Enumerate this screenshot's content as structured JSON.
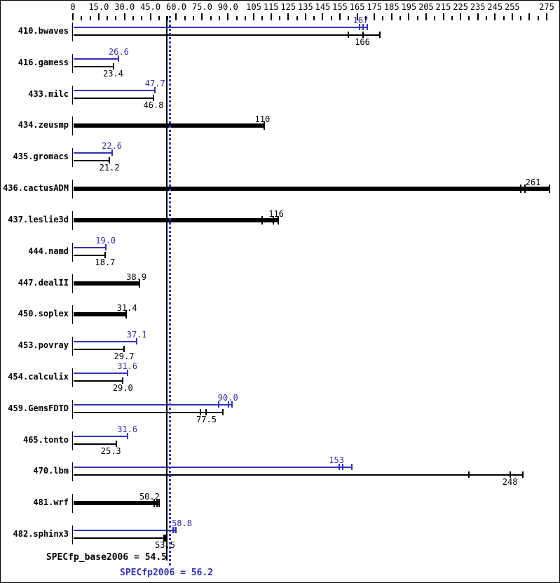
{
  "chart_data": {
    "type": "bar",
    "orientation": "horizontal",
    "title": "",
    "xlabel": "",
    "ylabel": "",
    "xlim": [
      0,
      275
    ],
    "grid": false,
    "legend_position": "none",
    "axis": {
      "minor_step": 5,
      "unlabeled_major_ticks": [
        265
      ],
      "labeled_ticks": [
        {
          "v": 0,
          "t": "0"
        },
        {
          "v": 15,
          "t": "15.0"
        },
        {
          "v": 30,
          "t": "30.0"
        },
        {
          "v": 45,
          "t": "45.0"
        },
        {
          "v": 60,
          "t": "60.0"
        },
        {
          "v": 75,
          "t": "75.0"
        },
        {
          "v": 90,
          "t": "90.0"
        },
        {
          "v": 105,
          "t": "105"
        },
        {
          "v": 115,
          "t": "115"
        },
        {
          "v": 125,
          "t": "125"
        },
        {
          "v": 135,
          "t": "135"
        },
        {
          "v": 145,
          "t": "145"
        },
        {
          "v": 155,
          "t": "155"
        },
        {
          "v": 165,
          "t": "165"
        },
        {
          "v": 175,
          "t": "175"
        },
        {
          "v": 185,
          "t": "185"
        },
        {
          "v": 195,
          "t": "195"
        },
        {
          "v": 205,
          "t": "205"
        },
        {
          "v": 215,
          "t": "215"
        },
        {
          "v": 225,
          "t": "225"
        },
        {
          "v": 235,
          "t": "235"
        },
        {
          "v": 245,
          "t": "245"
        },
        {
          "v": 255,
          "t": "255"
        },
        {
          "v": 275,
          "t": "275"
        }
      ]
    },
    "colors": {
      "peak_blue": "#3333b3",
      "base_black": "#000000",
      "background": "#ffffff"
    },
    "benchmarks": [
      {
        "name": "410.bwaves",
        "peak": {
          "label": "167",
          "value": 167,
          "bar_end": 171,
          "run_marks": [
            166.5,
            168.5
          ]
        },
        "base": {
          "label": "166",
          "value": 166,
          "bar_end": 178,
          "run_marks": [
            160,
            168.5
          ],
          "label_dx": 5
        }
      },
      {
        "name": "416.gamess",
        "peak": {
          "label": "26.6",
          "value": 26.6
        },
        "base": {
          "label": "23.4",
          "value": 23.4
        }
      },
      {
        "name": "433.milc",
        "peak": {
          "label": "47.7",
          "value": 47.7
        },
        "base": {
          "label": "46.8",
          "value": 46.8
        }
      },
      {
        "name": "434.zeusmp",
        "style": "thick",
        "base": {
          "label": "110",
          "value": 110,
          "bar_end": 111.5
        }
      },
      {
        "name": "435.gromacs",
        "peak": {
          "label": "22.6",
          "value": 22.6
        },
        "base": {
          "label": "21.2",
          "value": 21.2
        }
      },
      {
        "name": "436.cactusADM",
        "style": "thick",
        "base": {
          "label": "261",
          "value": 261,
          "bar_end": 277,
          "run_marks": [
            260,
            262.5
          ],
          "label_dx": 15
        }
      },
      {
        "name": "437.leslie3d",
        "style": "thick",
        "base": {
          "label": "116",
          "value": 116,
          "bar_end": 119.5,
          "run_marks": [
            110,
            116.5
          ],
          "label_dx": 5
        }
      },
      {
        "name": "444.namd",
        "peak": {
          "label": "19.0",
          "value": 19
        },
        "base": {
          "label": "18.7",
          "value": 18.7
        }
      },
      {
        "name": "447.dealII",
        "style": "thick",
        "base": {
          "label": "38.9",
          "value": 38.9,
          "label_dx": -5
        }
      },
      {
        "name": "450.soplex",
        "style": "thick",
        "base": {
          "label": "31.4",
          "value": 31.4
        }
      },
      {
        "name": "453.povray",
        "peak": {
          "label": "37.1",
          "value": 37.1
        },
        "base": {
          "label": "29.7",
          "value": 29.7
        }
      },
      {
        "name": "454.calculix",
        "peak": {
          "label": "31.6",
          "value": 31.6
        },
        "base": {
          "label": "29.0",
          "value": 29
        }
      },
      {
        "name": "459.GemsFDTD",
        "peak": {
          "label": "90.0",
          "value": 90,
          "bar_end": 92.5,
          "run_marks": [
            84.5,
            90.3
          ]
        },
        "base": {
          "label": "77.5",
          "value": 77.5,
          "bar_end": 87,
          "run_marks": [
            74,
            77.3
          ]
        }
      },
      {
        "name": "465.tonto",
        "peak": {
          "label": "31.6",
          "value": 31.6
        },
        "base": {
          "label": "25.3",
          "value": 25.3,
          "label_dx": -8
        }
      },
      {
        "name": "470.lbm",
        "peak": {
          "label": "153",
          "value": 153,
          "bar_end": 162,
          "run_marks": [
            154.5,
            156.5
          ]
        },
        "base": {
          "label": "248",
          "value": 248,
          "bar_end": 261,
          "run_marks": [
            230,
            254
          ],
          "label_dx": 14
        }
      },
      {
        "name": "481.wrf",
        "style": "thick",
        "base": {
          "label": "50.2",
          "value": 50.2,
          "bar_end": 50.5,
          "run_marks": [
            47,
            49
          ],
          "label_dx": -14
        }
      },
      {
        "name": "482.sphinx3",
        "peak": {
          "label": "58.8",
          "value": 58.8,
          "bar_end": 59.8,
          "run_marks": [
            58.2,
            59.2
          ],
          "label_dx": 11
        },
        "base": {
          "label": "53.5",
          "value": 53.5,
          "bar_end": 54.3,
          "cap": "block"
        }
      }
    ],
    "summary": {
      "base": {
        "label": "SPECfp_base2006 = 54.5",
        "value": 54.5
      },
      "peak": {
        "label": "SPECfp2006 = 56.2",
        "value": 56.2
      }
    }
  }
}
